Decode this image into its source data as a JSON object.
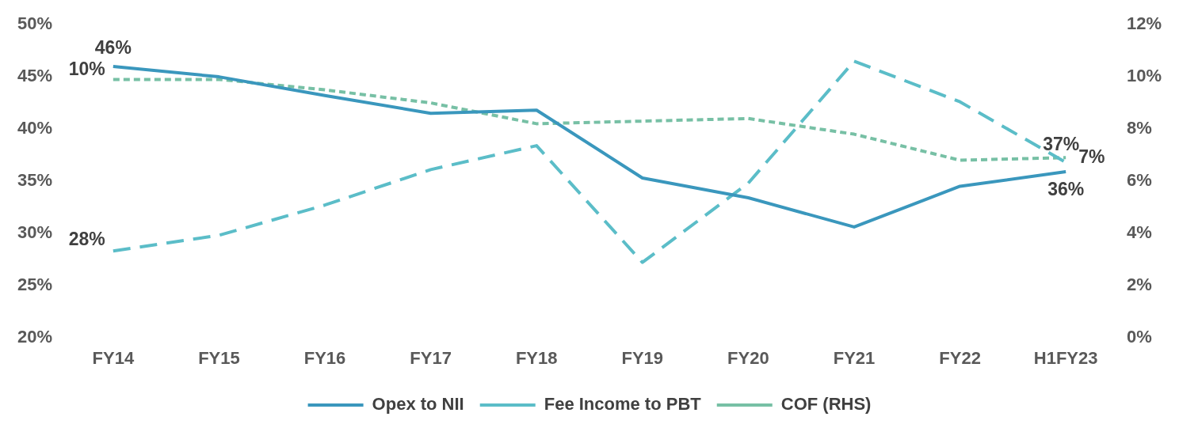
{
  "chart_data": {
    "type": "line",
    "categories": [
      "FY14",
      "FY15",
      "FY16",
      "FY17",
      "FY18",
      "FY19",
      "FY20",
      "FY21",
      "FY22",
      "H1FY23"
    ],
    "series": [
      {
        "name": "Opex to NII",
        "color": "#3a97bd",
        "line_style": "solid",
        "values": [
          46,
          45,
          43.2,
          41.5,
          41.8,
          35.3,
          33.4,
          30.6,
          34.5,
          35.9
        ],
        "value_labels": [
          "46%",
          null,
          null,
          null,
          null,
          null,
          null,
          null,
          null,
          "36%"
        ]
      },
      {
        "name": "Fee Income to PBT",
        "color": "#5bbdc8",
        "line_style": "dashed",
        "values": [
          28.3,
          29.8,
          32.7,
          36.1,
          38.4,
          27.2,
          34.8,
          46.5,
          42.6,
          36.8
        ],
        "value_labels": [
          "28%",
          null,
          null,
          null,
          null,
          null,
          null,
          null,
          null,
          "37%"
        ]
      },
      {
        "name": "COF (RHS)",
        "color": "#77c0a5",
        "line_style": "dotted",
        "axis": "y2",
        "values": [
          9.9,
          9.9,
          9.5,
          9.0,
          8.2,
          8.3,
          8.4,
          7.8,
          6.8,
          6.9
        ],
        "value_labels": [
          "10%",
          null,
          null,
          null,
          null,
          null,
          null,
          null,
          null,
          "7%"
        ]
      }
    ],
    "ylim": [
      20,
      50
    ],
    "yticks": [
      {
        "value": 20,
        "label": "20%"
      },
      {
        "value": 25,
        "label": "25%"
      },
      {
        "value": 30,
        "label": "30%"
      },
      {
        "value": 35,
        "label": "35%"
      },
      {
        "value": 40,
        "label": "40%"
      },
      {
        "value": 45,
        "label": "45%"
      },
      {
        "value": 50,
        "label": "50%"
      }
    ],
    "y2lim": [
      0,
      12
    ],
    "y2ticks": [
      {
        "value": 0,
        "label": "0%"
      },
      {
        "value": 2,
        "label": "2%"
      },
      {
        "value": 4,
        "label": "4%"
      },
      {
        "value": 6,
        "label": "6%"
      },
      {
        "value": 8,
        "label": "8%"
      },
      {
        "value": 10,
        "label": "10%"
      },
      {
        "value": 12,
        "label": "12%"
      }
    ],
    "grid": false,
    "legend": "bottom",
    "marker": "none"
  }
}
